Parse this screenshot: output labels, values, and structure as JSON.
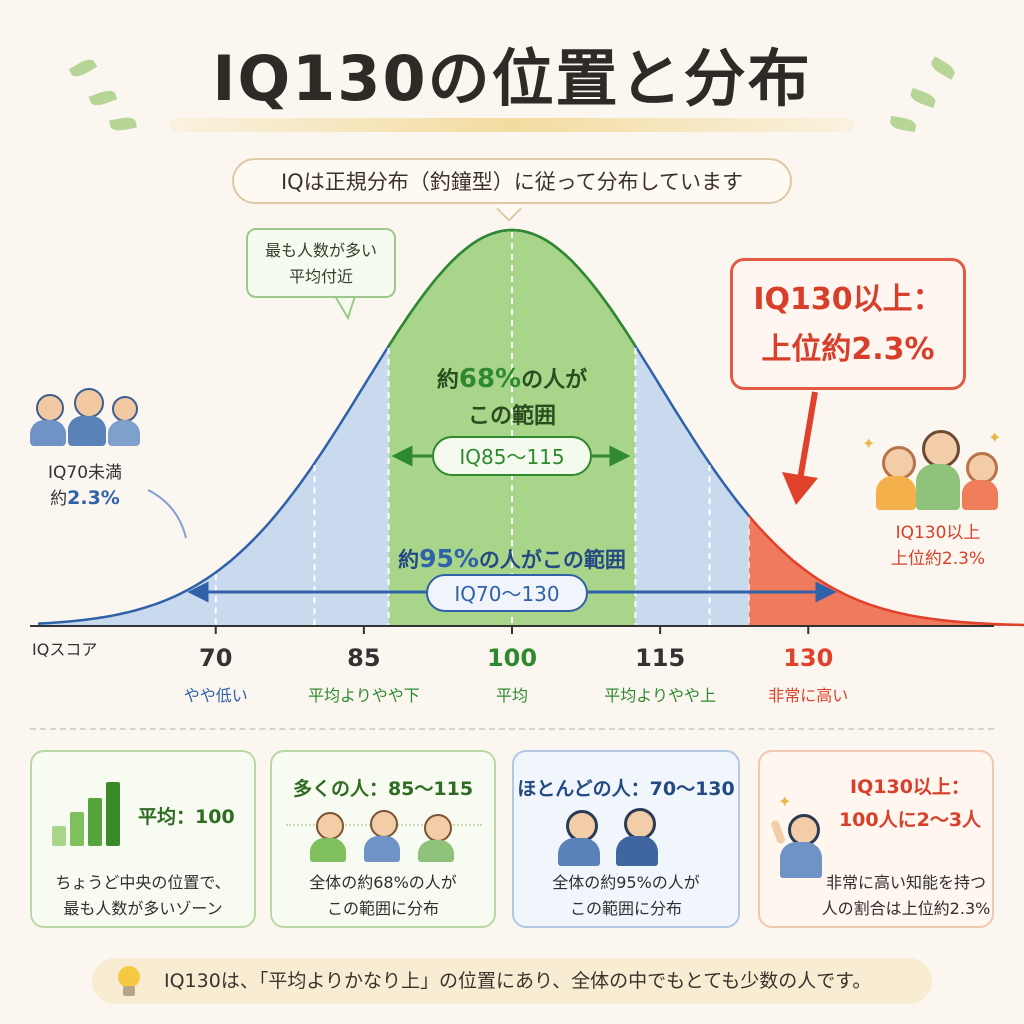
{
  "title": "IQ130の位置と分布",
  "subtitle": "IQは正規分布（釣鐘型）に従って分布しています",
  "colors": {
    "blue": "#2f62a8",
    "green": "#2f8a2f",
    "red": "#e0412b",
    "blue_fill": "#c9d9ee",
    "green_fill": "#a9d58a",
    "red_fill": "#f07a5e"
  },
  "callouts": {
    "top_line1": "最も人数が多い",
    "top_line2": "平均付近",
    "red_line1": "IQ130以上：",
    "red_line2": "上位約2.3%"
  },
  "left_side": {
    "line1": "IQ70未満",
    "line2_prefix": "約",
    "line2_value": "2.3%"
  },
  "right_side": {
    "line1": "IQ130以上",
    "line2": "上位約2.3%"
  },
  "center": {
    "line1_prefix": "約",
    "line1_value": "68%",
    "line1_suffix": "の人が",
    "line2": "この範囲",
    "range68": "IQ85～115",
    "line95_prefix": "約",
    "line95_value": "95%",
    "line95_suffix": "の人がこの範囲",
    "range95": "IQ70～130"
  },
  "chart_data": {
    "type": "area",
    "title": "IQ130の位置と分布",
    "xlabel": "IQスコア",
    "ylabel": "",
    "distribution": "normal",
    "mean": 100,
    "sd": 15,
    "xlim": [
      52,
      156
    ],
    "ticks": [
      {
        "value": 70,
        "label": "70",
        "desc": "やや低い",
        "color": "#2f62a8"
      },
      {
        "value": 85,
        "label": "85",
        "desc": "平均よりやや下",
        "color": "#2f8a2f"
      },
      {
        "value": 100,
        "label": "100",
        "desc": "平均",
        "color": "#2f8a2f"
      },
      {
        "value": 115,
        "label": "115",
        "desc": "平均よりやや上",
        "color": "#2f8a2f"
      },
      {
        "value": 130,
        "label": "130",
        "desc": "非常に高い",
        "color": "#e0412b"
      }
    ],
    "regions": [
      {
        "from": 85,
        "to": 115,
        "percent": 68,
        "label": "IQ85～115"
      },
      {
        "from": 70,
        "to": 130,
        "percent": 95,
        "label": "IQ70～130"
      },
      {
        "from": 130,
        "to": null,
        "percent": 2.3,
        "label": "IQ130以上"
      },
      {
        "from": null,
        "to": 70,
        "percent": 2.3,
        "label": "IQ70未満"
      }
    ]
  },
  "cards": [
    {
      "title_prefix": "平均：",
      "title_value": "100",
      "desc1": "ちょうど中央の位置で、",
      "desc2": "最も人数が多いゾーン",
      "icon": "bar-chart-icon"
    },
    {
      "title": "多くの人：85～115",
      "desc1": "全体の約68%の人が",
      "desc2": "この範囲に分布",
      "icon": "three-people-icon"
    },
    {
      "title": "ほとんどの人：70～130",
      "desc1": "全体の約95%の人が",
      "desc2": "この範囲に分布",
      "icon": "two-people-icon"
    },
    {
      "title1": "IQ130以上：",
      "title2": "100人に2～3人",
      "desc1": "非常に高い知能を持つ",
      "desc2": "人の割合は上位約2.3%",
      "icon": "pointing-person-icon"
    }
  ],
  "note": "IQ130は、「平均よりかなり上」の位置にあり、全体の中でもとても少数の人です。"
}
